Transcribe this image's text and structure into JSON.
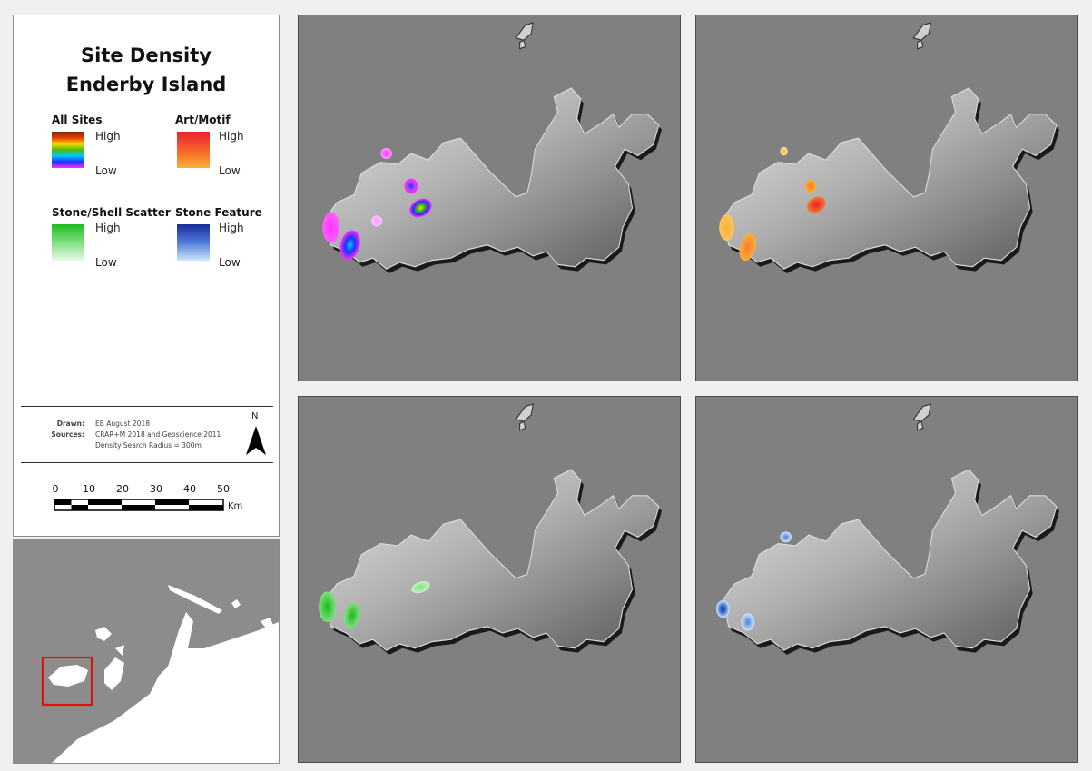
{
  "legend": {
    "title_line1": "Site Density",
    "title_line2": "Enderby Island",
    "categories": [
      {
        "name": "All Sites",
        "high": "High",
        "low": "Low",
        "ramp": [
          "#7a2a00",
          "#e43a00",
          "#ffd500",
          "#48c000",
          "#00c8ff",
          "#2030ff",
          "#ff30ff"
        ]
      },
      {
        "name": "Art/Motif",
        "high": "High",
        "low": "Low",
        "ramp": [
          "#e8242a",
          "#f24a2e",
          "#f77a2a",
          "#fbb03a"
        ]
      },
      {
        "name": "Stone/Shell Scatter",
        "high": "High",
        "low": "Low",
        "ramp": [
          "#1fb91f",
          "#7fe07f",
          "#e9f9e9"
        ]
      },
      {
        "name": "Stone Feature",
        "high": "High",
        "low": "Low",
        "ramp": [
          "#1a2a9a",
          "#4e7bd9",
          "#cfe8fb"
        ]
      }
    ]
  },
  "metadata": {
    "drawn_label": "Drawn:",
    "drawn_value": "EB August 2018",
    "sources_label": "Sources:",
    "sources_value": "CRAR+M 2018 and Geoscience 2011",
    "radius_value": "Density Search Radius = 300m"
  },
  "north_arrow_label": "N",
  "scale_bar": {
    "ticks": [
      "0",
      "10",
      "20",
      "30",
      "40",
      "50"
    ],
    "unit": "Km"
  },
  "colors": {
    "sea": "#808080",
    "inset_sea": "#8c8c8c",
    "inset_land": "#ffffff",
    "inset_box": "#e01010"
  },
  "maps": [
    {
      "name": "all-sites",
      "ramp": [
        "#7a2a00",
        "#e43a00",
        "#ffd500",
        "#48c000",
        "#00c8ff",
        "#2030ff",
        "#ff30ff"
      ]
    },
    {
      "name": "art-motif",
      "ramp": [
        "#e8242a",
        "#f77a2a",
        "#fbb03a"
      ]
    },
    {
      "name": "stone-shell-scatter",
      "ramp": [
        "#1fb91f",
        "#7fe07f",
        "#e9f9e9"
      ]
    },
    {
      "name": "stone-feature",
      "ramp": [
        "#1a2a9a",
        "#4e7bd9",
        "#cfe8fb"
      ]
    }
  ]
}
